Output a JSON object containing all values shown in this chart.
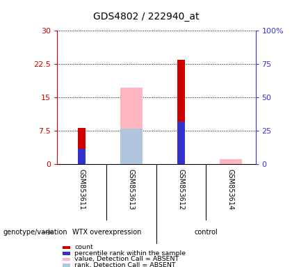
{
  "title": "GDS4802 / 222940_at",
  "samples": [
    "GSM853611",
    "GSM853613",
    "GSM853612",
    "GSM853614"
  ],
  "bar_positions": [
    1,
    2,
    3,
    4
  ],
  "count_values": [
    8.2,
    0,
    23.5,
    0
  ],
  "percentile_values": [
    3.5,
    0,
    9.5,
    0
  ],
  "absent_value_values": [
    0,
    17.2,
    0,
    1.1
  ],
  "absent_rank_values": [
    0,
    8.0,
    0,
    0
  ],
  "ylim": [
    0,
    30
  ],
  "y2lim": [
    0,
    100
  ],
  "yticks": [
    0,
    7.5,
    15,
    22.5,
    30
  ],
  "ytick_labels": [
    "0",
    "7.5",
    "15",
    "22.5",
    "30"
  ],
  "y2ticks": [
    0,
    25,
    50,
    75,
    100
  ],
  "y2tick_labels": [
    "0",
    "25",
    "50",
    "75",
    "100%"
  ],
  "count_color": "#CC0000",
  "percentile_color": "#3333CC",
  "absent_value_color": "#FFB6C1",
  "absent_rank_color": "#B0C4DE",
  "background_sample": "#D3D3D3",
  "axis_color_left": "#CC0000",
  "axis_color_right": "#3333CC",
  "light_green": "#66EE66",
  "legend_items": [
    {
      "label": "count",
      "color": "#CC0000"
    },
    {
      "label": "percentile rank within the sample",
      "color": "#3333CC"
    },
    {
      "label": "value, Detection Call = ABSENT",
      "color": "#FFB6C1"
    },
    {
      "label": "rank, Detection Call = ABSENT",
      "color": "#B0C4DE"
    }
  ]
}
